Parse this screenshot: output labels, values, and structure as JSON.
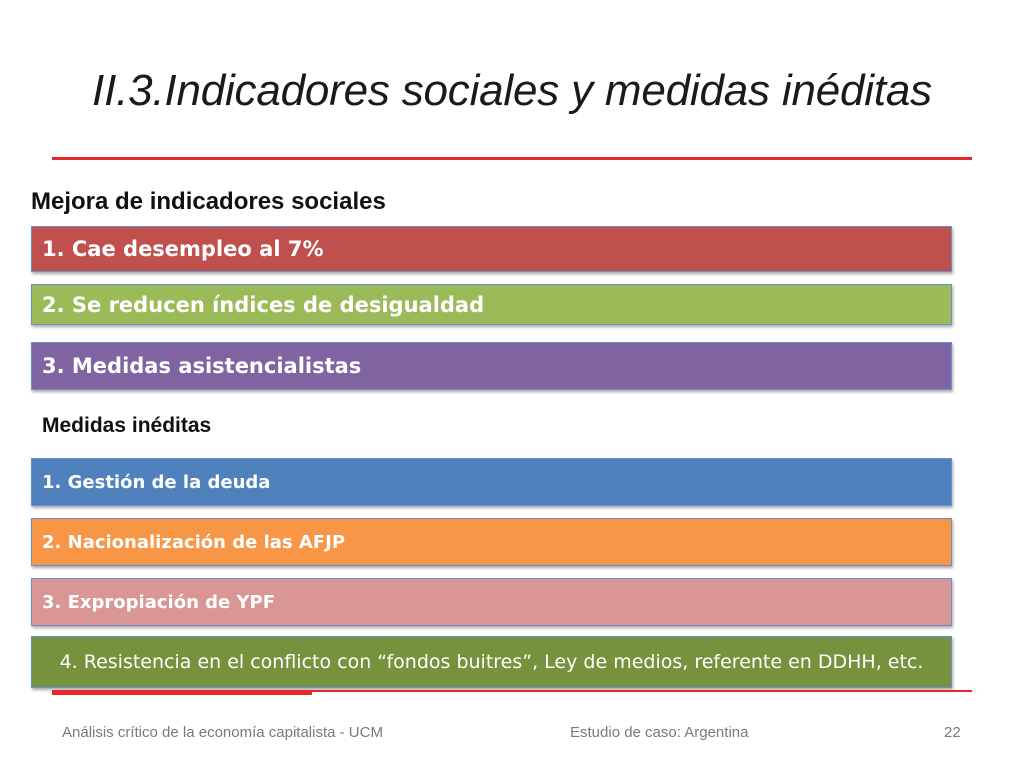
{
  "slide": {
    "title": "II.3.Indicadores sociales y medidas inéditas",
    "colors": {
      "rule": "#e8262b",
      "red": "#c0504d",
      "green": "#9bbb59",
      "purple": "#8064a2",
      "blue": "#4f81bd",
      "orange": "#f79646",
      "pink": "#d99694",
      "olive": "#76923c"
    }
  },
  "social": {
    "heading": "Mejora de indicadores sociales",
    "items": [
      "1. Cae desempleo al 7%",
      "2. Se reducen índices de desigualdad",
      "3. Medidas asistencialistas"
    ]
  },
  "measures": {
    "heading": "Medidas inéditas",
    "items": [
      "1. Gestión de la deuda",
      "2. Nacionalización de las AFJP",
      "3. Expropiación de YPF",
      "4. Resistencia en el conflicto con “fondos buitres”, Ley de medios, referente en DDHH, etc."
    ]
  },
  "footer": {
    "left": "Análisis crítico de la economía capitalista - UCM",
    "center": "Estudio de caso: Argentina",
    "page_number": "22"
  }
}
